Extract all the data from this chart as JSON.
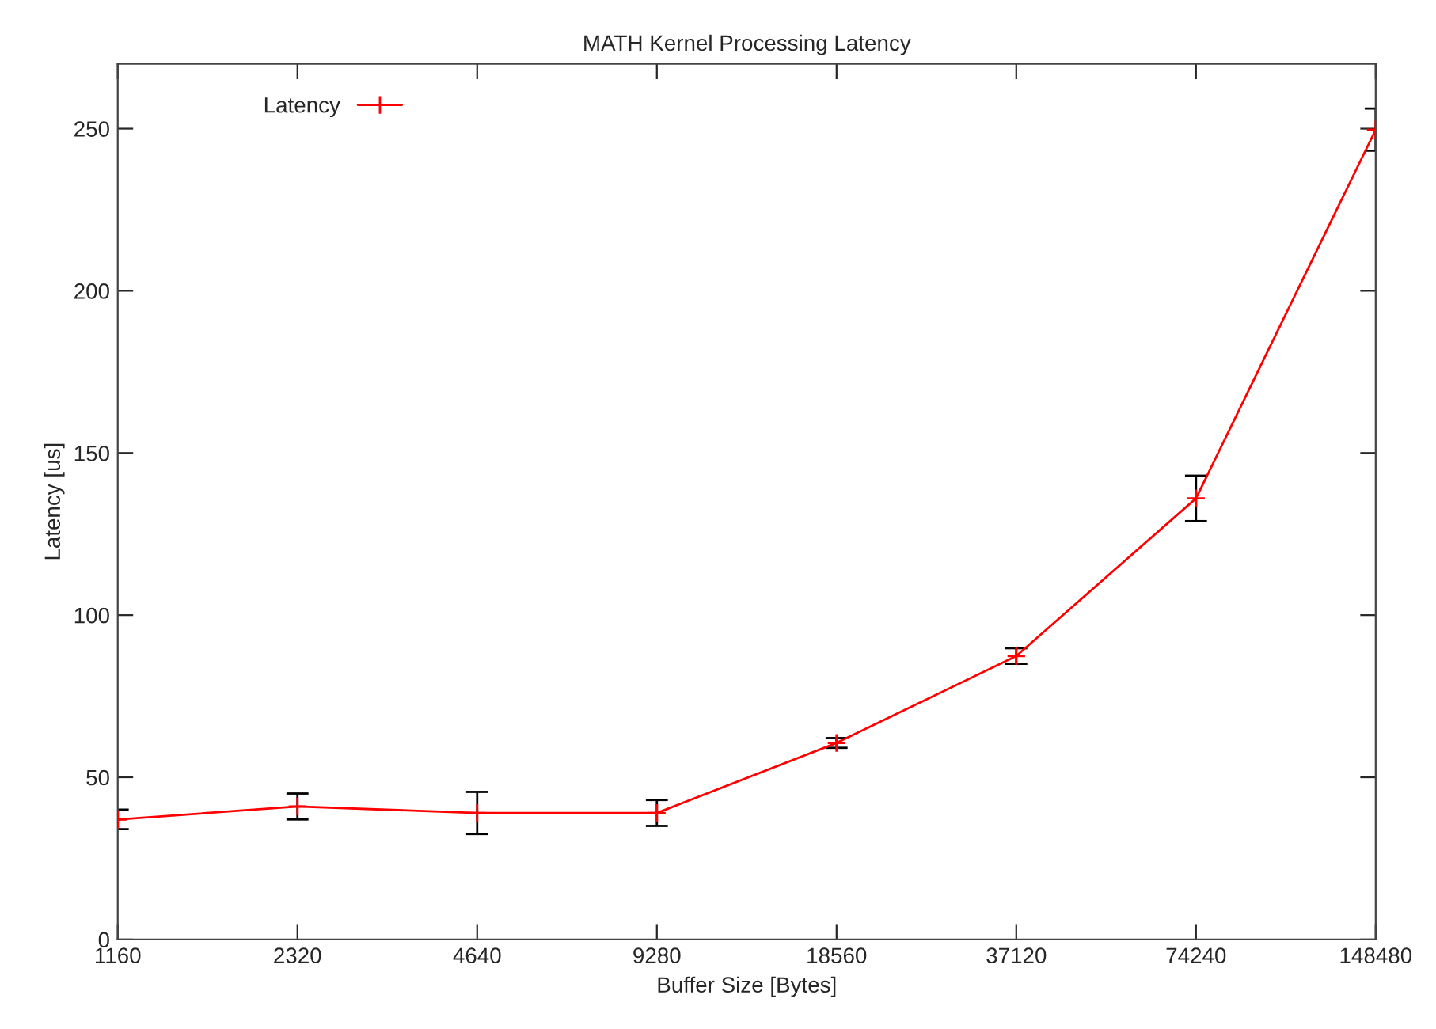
{
  "chart_data": {
    "type": "line",
    "title": "MATH Kernel Processing Latency",
    "xlabel": "Buffer Size [Bytes]",
    "ylabel": "Latency [us]",
    "x": [
      1160,
      2320,
      4640,
      9280,
      18560,
      37120,
      74240,
      148480
    ],
    "series": [
      {
        "name": "Latency",
        "color": "#ff0000",
        "values": [
          37,
          41,
          39,
          39,
          60.6,
          87.4,
          136,
          249.7
        ],
        "errors": [
          3,
          4,
          6.5,
          4,
          1.5,
          2.4,
          7,
          6.5
        ]
      }
    ],
    "log": "x",
    "xlim": [
      1160,
      148480
    ],
    "xticks": [
      1160,
      2320,
      4640,
      9280,
      18560,
      37120,
      74240,
      148480
    ],
    "ylim": [
      0,
      270
    ],
    "yticks": [
      0,
      50,
      100,
      150,
      200,
      250
    ],
    "grid": false,
    "legend": "top left",
    "marker": "cross",
    "line_style": "solid"
  }
}
